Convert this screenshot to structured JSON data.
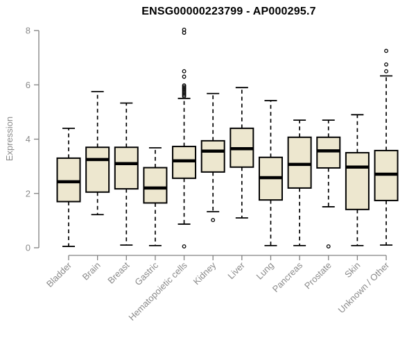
{
  "chart_data": {
    "type": "boxplot",
    "title": "ENSG00000223799 - AP000295.7",
    "xlabel": "",
    "ylabel": "Expression",
    "ylim": [
      0,
      8
    ],
    "yticks": [
      0,
      2,
      4,
      6,
      8
    ],
    "grid": false,
    "legend_position": "none",
    "categories": [
      "Bladder",
      "Brain",
      "Breast",
      "Gastric",
      "Hematopoietic cells",
      "Kidney",
      "Liver",
      "Lung",
      "Pancreas",
      "Prostate",
      "Skin",
      "Unknown / Other"
    ],
    "boxes": [
      {
        "category": "Bladder",
        "whisker_low": 0.05,
        "q1": 1.7,
        "median": 2.43,
        "q3": 3.3,
        "whisker_high": 4.4,
        "outliers": []
      },
      {
        "category": "Brain",
        "whisker_low": 1.22,
        "q1": 2.05,
        "median": 3.25,
        "q3": 3.7,
        "whisker_high": 5.75,
        "outliers": []
      },
      {
        "category": "Breast",
        "whisker_low": 0.1,
        "q1": 2.17,
        "median": 3.1,
        "q3": 3.7,
        "whisker_high": 5.33,
        "outliers": []
      },
      {
        "category": "Gastric",
        "whisker_low": 0.08,
        "q1": 1.65,
        "median": 2.2,
        "q3": 2.95,
        "whisker_high": 3.68,
        "outliers": []
      },
      {
        "category": "Hematopoietic cells",
        "whisker_low": 0.87,
        "q1": 2.56,
        "median": 3.2,
        "q3": 3.73,
        "whisker_high": 5.5,
        "outliers": [
          8.03,
          7.92,
          6.5,
          6.3,
          5.98,
          5.93,
          5.88,
          5.83,
          5.78,
          5.73,
          5.68,
          5.63,
          5.58,
          0.05
        ]
      },
      {
        "category": "Kidney",
        "whisker_low": 1.33,
        "q1": 2.79,
        "median": 3.56,
        "q3": 3.94,
        "whisker_high": 5.68,
        "outliers": [
          1.02
        ]
      },
      {
        "category": "Liver",
        "whisker_low": 1.1,
        "q1": 2.97,
        "median": 3.65,
        "q3": 4.4,
        "whisker_high": 5.9,
        "outliers": []
      },
      {
        "category": "Lung",
        "whisker_low": 0.08,
        "q1": 1.76,
        "median": 2.58,
        "q3": 3.33,
        "whisker_high": 5.42,
        "outliers": []
      },
      {
        "category": "Pancreas",
        "whisker_low": 0.08,
        "q1": 2.2,
        "median": 3.07,
        "q3": 4.07,
        "whisker_high": 4.7,
        "outliers": []
      },
      {
        "category": "Prostate",
        "whisker_low": 1.51,
        "q1": 2.94,
        "median": 3.57,
        "q3": 4.07,
        "whisker_high": 4.7,
        "outliers": [
          0.05
        ]
      },
      {
        "category": "Skin",
        "whisker_low": 0.08,
        "q1": 1.41,
        "median": 2.97,
        "q3": 3.5,
        "whisker_high": 4.9,
        "outliers": []
      },
      {
        "category": "Unknown / Other",
        "whisker_low": 0.1,
        "q1": 1.74,
        "median": 2.71,
        "q3": 3.58,
        "whisker_high": 6.33,
        "outliers": [
          7.25,
          6.75,
          6.5
        ]
      }
    ],
    "colors": {
      "box_fill": "#EDE7CF",
      "box_border": "#000000",
      "median": "#000000",
      "whisker": "#000000",
      "outlier": "#000000",
      "axis": "#808080",
      "tick_label": "#8a8a8a",
      "title": "#000000",
      "background": "#ffffff"
    }
  }
}
